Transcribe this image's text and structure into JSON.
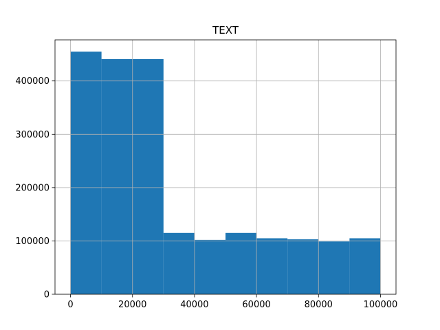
{
  "chart_data": {
    "type": "bar",
    "title": "TEXT",
    "xlabel": "",
    "ylabel": "",
    "bins": [
      {
        "x0": 0,
        "x1": 10000,
        "value": 455000
      },
      {
        "x0": 10000,
        "x1": 20000,
        "value": 441000
      },
      {
        "x0": 20000,
        "x1": 30000,
        "value": 441000
      },
      {
        "x0": 30000,
        "x1": 40000,
        "value": 115000
      },
      {
        "x0": 40000,
        "x1": 50000,
        "value": 102000
      },
      {
        "x0": 50000,
        "x1": 60000,
        "value": 115000
      },
      {
        "x0": 60000,
        "x1": 70000,
        "value": 105000
      },
      {
        "x0": 70000,
        "x1": 80000,
        "value": 103000
      },
      {
        "x0": 80000,
        "x1": 90000,
        "value": 99000
      },
      {
        "x0": 90000,
        "x1": 100000,
        "value": 105000
      }
    ],
    "xlim": [
      -5000,
      105000
    ],
    "ylim": [
      0,
      477000
    ],
    "xticks": [
      0,
      20000,
      40000,
      60000,
      80000,
      100000
    ],
    "yticks": [
      0,
      100000,
      200000,
      300000,
      400000
    ],
    "xtick_labels": [
      "0",
      "20000",
      "40000",
      "60000",
      "80000",
      "100000"
    ],
    "ytick_labels": [
      "0",
      "100000",
      "200000",
      "300000",
      "400000"
    ],
    "grid": true,
    "bar_color": "#1f77b4",
    "grid_color": "#b0b0b0"
  }
}
